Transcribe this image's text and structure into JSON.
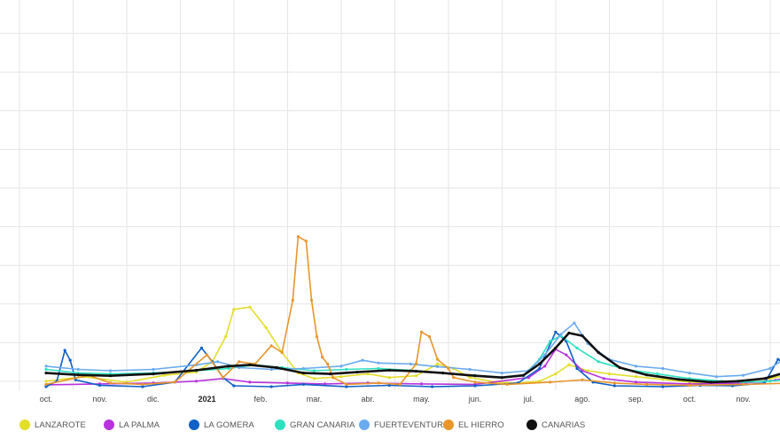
{
  "chart_data": {
    "type": "line",
    "title": "",
    "xlabel": "",
    "ylabel": "",
    "x_tick_labels": [
      "oct.",
      "nov.",
      "dic.",
      "2021",
      "feb.",
      "mar.",
      "abr.",
      "may.",
      "jun.",
      "jul.",
      "ago.",
      "sep.",
      "oct.",
      "nov."
    ],
    "x_tick_bold": [
      false,
      false,
      false,
      true,
      false,
      false,
      false,
      false,
      false,
      false,
      false,
      false,
      false,
      false
    ],
    "x_range": [
      0,
      14.4
    ],
    "ylim": [
      0,
      850
    ],
    "grid": true,
    "legend_position": "bottom",
    "series": [
      {
        "name": "LANZAROTE",
        "color": "#e3de2a",
        "points": [
          [
            0,
            12
          ],
          [
            0.7,
            22
          ],
          [
            1.5,
            10
          ],
          [
            2.2,
            25
          ],
          [
            2.8,
            32
          ],
          [
            3.1,
            55
          ],
          [
            3.35,
            110
          ],
          [
            3.5,
            170
          ],
          [
            3.8,
            175
          ],
          [
            4.1,
            130
          ],
          [
            4.4,
            75
          ],
          [
            4.7,
            30
          ],
          [
            5.0,
            18
          ],
          [
            5.5,
            22
          ],
          [
            6.0,
            28
          ],
          [
            6.4,
            20
          ],
          [
            6.9,
            24
          ],
          [
            7.3,
            50
          ],
          [
            7.6,
            40
          ],
          [
            7.9,
            20
          ],
          [
            8.4,
            10
          ],
          [
            8.8,
            8
          ],
          [
            9.2,
            12
          ],
          [
            9.5,
            28
          ],
          [
            9.75,
            48
          ],
          [
            10.1,
            35
          ],
          [
            10.5,
            28
          ],
          [
            11,
            22
          ],
          [
            11.5,
            16
          ],
          [
            12,
            10
          ],
          [
            12.5,
            8
          ],
          [
            13,
            12
          ],
          [
            13.5,
            18
          ],
          [
            14,
            30
          ],
          [
            14.4,
            42
          ]
        ]
      },
      {
        "name": "LA PALMA",
        "color": "#b833dd",
        "points": [
          [
            0,
            4
          ],
          [
            1,
            6
          ],
          [
            2,
            8
          ],
          [
            2.8,
            12
          ],
          [
            3.3,
            18
          ],
          [
            3.8,
            10
          ],
          [
            4.5,
            8
          ],
          [
            5.2,
            6
          ],
          [
            6,
            8
          ],
          [
            7,
            6
          ],
          [
            8,
            5
          ],
          [
            9.0,
            20
          ],
          [
            9.3,
            45
          ],
          [
            9.5,
            82
          ],
          [
            9.7,
            70
          ],
          [
            10,
            35
          ],
          [
            10.4,
            18
          ],
          [
            11,
            10
          ],
          [
            12,
            6
          ],
          [
            13,
            8
          ],
          [
            13.6,
            14
          ],
          [
            14,
            25
          ],
          [
            14.4,
            35
          ]
        ]
      },
      {
        "name": "LA GOMERA",
        "color": "#1060c8",
        "points": [
          [
            0,
            0
          ],
          [
            0.2,
            12
          ],
          [
            0.35,
            80
          ],
          [
            0.45,
            58
          ],
          [
            0.55,
            15
          ],
          [
            1.0,
            3
          ],
          [
            1.8,
            0
          ],
          [
            2.4,
            10
          ],
          [
            2.9,
            85
          ],
          [
            3.1,
            55
          ],
          [
            3.3,
            20
          ],
          [
            3.5,
            2
          ],
          [
            4.2,
            0
          ],
          [
            4.8,
            5
          ],
          [
            5.6,
            0
          ],
          [
            6.4,
            3
          ],
          [
            7.2,
            0
          ],
          [
            8.0,
            2
          ],
          [
            8.8,
            8
          ],
          [
            9.2,
            40
          ],
          [
            9.5,
            120
          ],
          [
            9.7,
            100
          ],
          [
            9.9,
            40
          ],
          [
            10.2,
            10
          ],
          [
            10.6,
            2
          ],
          [
            11.5,
            0
          ],
          [
            12.2,
            3
          ],
          [
            12.8,
            2
          ],
          [
            13.4,
            8
          ],
          [
            13.65,
            60
          ],
          [
            13.8,
            50
          ],
          [
            14.0,
            20
          ],
          [
            14.4,
            15
          ]
        ]
      },
      {
        "name": "GRAN CANARIA",
        "color": "#2de0c0",
        "points": [
          [
            0,
            38
          ],
          [
            0.6,
            30
          ],
          [
            1.2,
            28
          ],
          [
            2.0,
            30
          ],
          [
            2.8,
            35
          ],
          [
            3.4,
            40
          ],
          [
            3.9,
            48
          ],
          [
            4.4,
            42
          ],
          [
            5.0,
            35
          ],
          [
            5.6,
            38
          ],
          [
            6.2,
            40
          ],
          [
            6.8,
            36
          ],
          [
            7.4,
            30
          ],
          [
            8.0,
            25
          ],
          [
            8.5,
            20
          ],
          [
            8.9,
            24
          ],
          [
            9.2,
            60
          ],
          [
            9.4,
            100
          ],
          [
            9.6,
            112
          ],
          [
            9.9,
            85
          ],
          [
            10.3,
            55
          ],
          [
            10.8,
            38
          ],
          [
            11.4,
            28
          ],
          [
            12,
            18
          ],
          [
            12.6,
            12
          ],
          [
            13,
            10
          ],
          [
            13.5,
            12
          ],
          [
            14,
            18
          ],
          [
            14.4,
            25
          ]
        ]
      },
      {
        "name": "FUERTEVENTURA",
        "color": "#6aaaee",
        "points": [
          [
            0,
            45
          ],
          [
            0.6,
            38
          ],
          [
            1.2,
            35
          ],
          [
            2.0,
            38
          ],
          [
            2.8,
            48
          ],
          [
            3.2,
            55
          ],
          [
            3.6,
            42
          ],
          [
            4.2,
            38
          ],
          [
            4.8,
            40
          ],
          [
            5.5,
            45
          ],
          [
            5.9,
            58
          ],
          [
            6.2,
            52
          ],
          [
            6.8,
            50
          ],
          [
            7.3,
            44
          ],
          [
            7.9,
            38
          ],
          [
            8.5,
            30
          ],
          [
            9.0,
            35
          ],
          [
            9.3,
            70
          ],
          [
            9.6,
            115
          ],
          [
            9.85,
            140
          ],
          [
            10.1,
            95
          ],
          [
            10.5,
            60
          ],
          [
            11,
            45
          ],
          [
            11.5,
            40
          ],
          [
            12,
            30
          ],
          [
            12.5,
            22
          ],
          [
            13,
            25
          ],
          [
            13.5,
            40
          ],
          [
            14,
            80
          ],
          [
            14.3,
            110
          ],
          [
            14.4,
            115
          ]
        ]
      },
      {
        "name": "EL HIERRO",
        "color": "#e8952a",
        "points": [
          [
            0,
            5
          ],
          [
            0.8,
            25
          ],
          [
            1.2,
            8
          ],
          [
            1.8,
            5
          ],
          [
            2.4,
            10
          ],
          [
            3.0,
            70
          ],
          [
            3.3,
            20
          ],
          [
            3.6,
            55
          ],
          [
            3.9,
            50
          ],
          [
            4.2,
            90
          ],
          [
            4.4,
            75
          ],
          [
            4.6,
            190
          ],
          [
            4.7,
            330
          ],
          [
            4.85,
            320
          ],
          [
            4.95,
            190
          ],
          [
            5.05,
            110
          ],
          [
            5.15,
            65
          ],
          [
            5.25,
            50
          ],
          [
            5.35,
            20
          ],
          [
            5.6,
            5
          ],
          [
            6.2,
            8
          ],
          [
            6.6,
            5
          ],
          [
            6.9,
            50
          ],
          [
            7.0,
            120
          ],
          [
            7.15,
            110
          ],
          [
            7.3,
            60
          ],
          [
            7.5,
            40
          ],
          [
            7.6,
            20
          ],
          [
            8.0,
            10
          ],
          [
            8.6,
            5
          ],
          [
            9.4,
            10
          ],
          [
            10,
            15
          ],
          [
            10.6,
            8
          ],
          [
            11.2,
            5
          ],
          [
            12,
            3
          ],
          [
            13,
            5
          ],
          [
            14,
            8
          ],
          [
            14.4,
            6
          ]
        ]
      },
      {
        "name": "CANARIAS",
        "color": "#111111",
        "points": [
          [
            0,
            30
          ],
          [
            0.6,
            26
          ],
          [
            1.2,
            24
          ],
          [
            2.0,
            28
          ],
          [
            2.8,
            36
          ],
          [
            3.4,
            45
          ],
          [
            3.8,
            48
          ],
          [
            4.3,
            42
          ],
          [
            4.8,
            30
          ],
          [
            5.3,
            28
          ],
          [
            5.8,
            32
          ],
          [
            6.4,
            36
          ],
          [
            6.9,
            34
          ],
          [
            7.4,
            30
          ],
          [
            8.0,
            24
          ],
          [
            8.5,
            20
          ],
          [
            8.9,
            25
          ],
          [
            9.2,
            50
          ],
          [
            9.5,
            85
          ],
          [
            9.75,
            118
          ],
          [
            10.0,
            112
          ],
          [
            10.3,
            75
          ],
          [
            10.7,
            42
          ],
          [
            11.2,
            26
          ],
          [
            11.8,
            16
          ],
          [
            12.4,
            10
          ],
          [
            12.9,
            12
          ],
          [
            13.4,
            18
          ],
          [
            13.9,
            35
          ],
          [
            14.4,
            60
          ]
        ]
      }
    ]
  }
}
